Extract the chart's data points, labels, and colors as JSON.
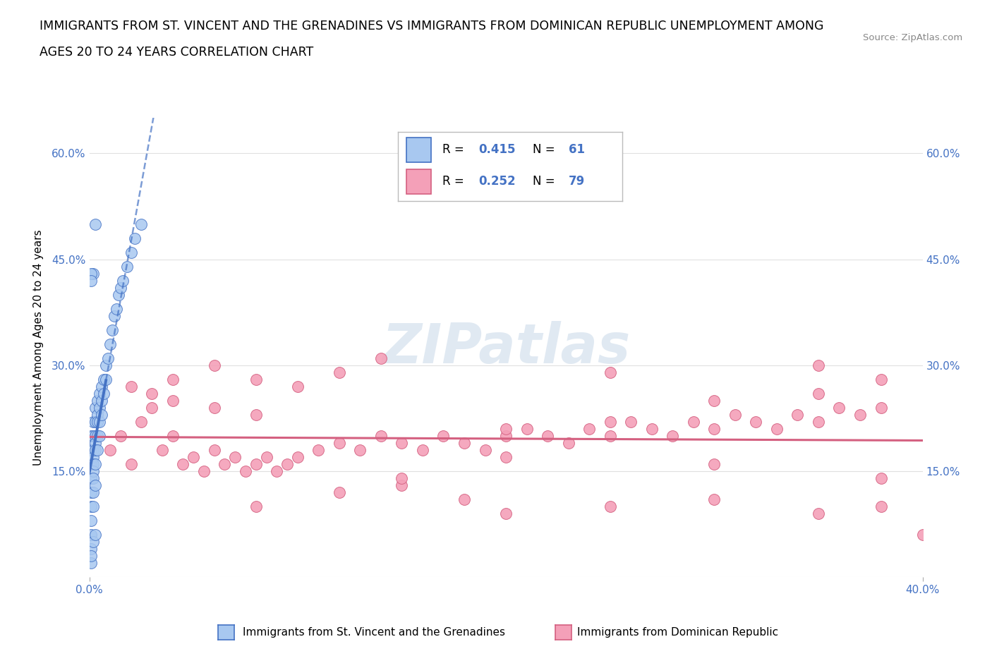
{
  "title_line1": "IMMIGRANTS FROM ST. VINCENT AND THE GRENADINES VS IMMIGRANTS FROM DOMINICAN REPUBLIC UNEMPLOYMENT AMONG",
  "title_line2": "AGES 20 TO 24 YEARS CORRELATION CHART",
  "source": "Source: ZipAtlas.com",
  "ylabel": "Unemployment Among Ages 20 to 24 years",
  "xlabel_blue": "Immigrants from St. Vincent and the Grenadines",
  "xlabel_pink": "Immigrants from Dominican Republic",
  "xlim": [
    0.0,
    0.4
  ],
  "ylim": [
    0.0,
    0.65
  ],
  "yticks": [
    0.0,
    0.15,
    0.3,
    0.45,
    0.6
  ],
  "ytick_labels": [
    "",
    "15.0%",
    "30.0%",
    "45.0%",
    "60.0%"
  ],
  "legend_R_blue": "0.415",
  "legend_N_blue": "61",
  "legend_R_pink": "0.252",
  "legend_N_pink": "79",
  "blue_color": "#a8c8f0",
  "blue_line_color": "#4472c4",
  "pink_color": "#f4a0b8",
  "pink_line_color": "#d46080",
  "watermark": "ZIPatlas",
  "background_color": "#ffffff",
  "grid_color": "#e0e0e0",
  "blue_scatter_x": [
    0.001,
    0.001,
    0.001,
    0.001,
    0.001,
    0.001,
    0.001,
    0.002,
    0.002,
    0.002,
    0.002,
    0.002,
    0.002,
    0.002,
    0.002,
    0.002,
    0.003,
    0.003,
    0.003,
    0.003,
    0.003,
    0.003,
    0.003,
    0.004,
    0.004,
    0.004,
    0.004,
    0.004,
    0.005,
    0.005,
    0.005,
    0.005,
    0.006,
    0.006,
    0.006,
    0.007,
    0.007,
    0.008,
    0.008,
    0.009,
    0.01,
    0.011,
    0.012,
    0.013,
    0.014,
    0.015,
    0.016,
    0.018,
    0.02,
    0.022,
    0.025,
    0.003,
    0.002,
    0.001,
    0.001,
    0.001,
    0.001,
    0.002,
    0.003,
    0.001,
    0.001
  ],
  "blue_scatter_y": [
    0.2,
    0.18,
    0.16,
    0.14,
    0.12,
    0.1,
    0.08,
    0.22,
    0.2,
    0.18,
    0.17,
    0.16,
    0.15,
    0.14,
    0.12,
    0.1,
    0.24,
    0.22,
    0.2,
    0.19,
    0.18,
    0.16,
    0.13,
    0.25,
    0.23,
    0.22,
    0.2,
    0.18,
    0.26,
    0.24,
    0.22,
    0.2,
    0.27,
    0.25,
    0.23,
    0.28,
    0.26,
    0.3,
    0.28,
    0.31,
    0.33,
    0.35,
    0.37,
    0.38,
    0.4,
    0.41,
    0.42,
    0.44,
    0.46,
    0.48,
    0.5,
    0.5,
    0.43,
    0.43,
    0.42,
    0.06,
    0.04,
    0.05,
    0.06,
    0.02,
    0.03
  ],
  "pink_scatter_x": [
    0.01,
    0.015,
    0.02,
    0.025,
    0.03,
    0.035,
    0.04,
    0.045,
    0.05,
    0.055,
    0.06,
    0.065,
    0.07,
    0.075,
    0.08,
    0.085,
    0.09,
    0.095,
    0.1,
    0.11,
    0.12,
    0.13,
    0.14,
    0.15,
    0.16,
    0.17,
    0.18,
    0.19,
    0.2,
    0.21,
    0.22,
    0.23,
    0.24,
    0.25,
    0.26,
    0.27,
    0.28,
    0.29,
    0.3,
    0.31,
    0.32,
    0.33,
    0.34,
    0.35,
    0.36,
    0.37,
    0.38,
    0.02,
    0.03,
    0.04,
    0.06,
    0.08,
    0.1,
    0.12,
    0.14,
    0.08,
    0.12,
    0.15,
    0.18,
    0.2,
    0.25,
    0.3,
    0.35,
    0.38,
    0.04,
    0.06,
    0.08,
    0.35,
    0.38,
    0.3,
    0.25,
    0.2,
    0.15,
    0.35,
    0.25,
    0.4,
    0.3,
    0.2,
    0.38
  ],
  "pink_scatter_y": [
    0.18,
    0.2,
    0.16,
    0.22,
    0.24,
    0.18,
    0.2,
    0.16,
    0.17,
    0.15,
    0.18,
    0.16,
    0.17,
    0.15,
    0.16,
    0.17,
    0.15,
    0.16,
    0.17,
    0.18,
    0.19,
    0.18,
    0.2,
    0.19,
    0.18,
    0.2,
    0.19,
    0.18,
    0.2,
    0.21,
    0.2,
    0.19,
    0.21,
    0.2,
    0.22,
    0.21,
    0.2,
    0.22,
    0.21,
    0.23,
    0.22,
    0.21,
    0.23,
    0.22,
    0.24,
    0.23,
    0.24,
    0.27,
    0.26,
    0.28,
    0.3,
    0.28,
    0.27,
    0.29,
    0.31,
    0.1,
    0.12,
    0.13,
    0.11,
    0.09,
    0.1,
    0.11,
    0.09,
    0.1,
    0.25,
    0.24,
    0.23,
    0.26,
    0.28,
    0.25,
    0.22,
    0.21,
    0.14,
    0.3,
    0.29,
    0.06,
    0.16,
    0.17,
    0.14
  ]
}
